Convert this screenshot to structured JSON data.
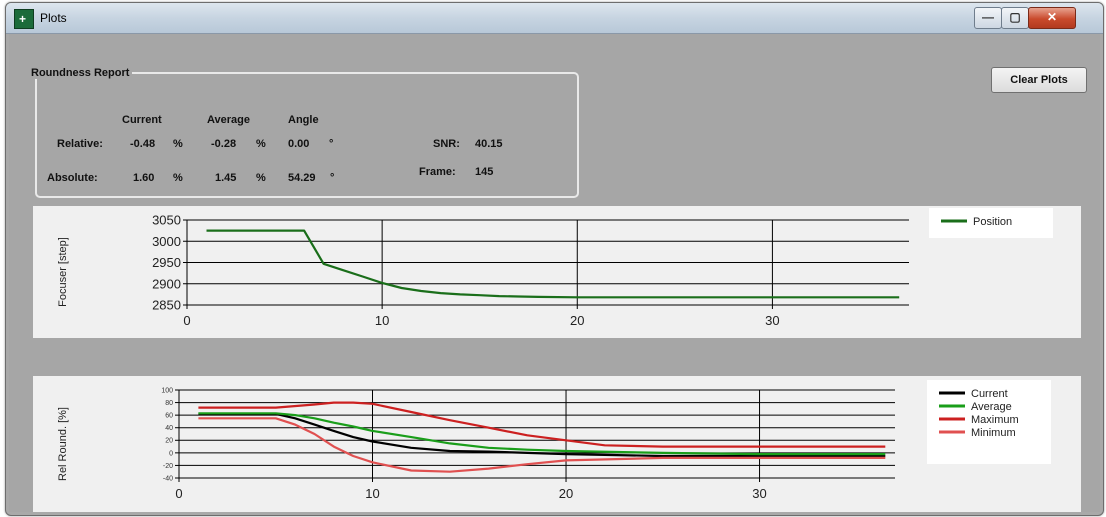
{
  "window": {
    "title": "Plots",
    "icon": "plots-app-icon"
  },
  "titlebar_buttons": {
    "minimize": "—",
    "maximize": "▢",
    "close": "✕"
  },
  "report": {
    "title": "Roundness Report",
    "headers": {
      "current": "Current",
      "average": "Average",
      "angle": "Angle"
    },
    "relative": {
      "label": "Relative:",
      "current": "-0.48",
      "current_unit": "%",
      "average": "-0.28",
      "average_unit": "%",
      "angle": "0.00",
      "angle_unit": "°"
    },
    "absolute": {
      "label": "Absolute:",
      "current": "1.60",
      "current_unit": "%",
      "average": "1.45",
      "average_unit": "%",
      "angle": "54.29",
      "angle_unit": "°"
    },
    "snr": {
      "label": "SNR:",
      "value": "40.15"
    },
    "frame": {
      "label": "Frame:",
      "value": "145"
    }
  },
  "clear_button": "Clear Plots",
  "chart_data": [
    {
      "type": "line",
      "ylabel": "Focuser [step]",
      "xlim": [
        0,
        37
      ],
      "ylim": [
        2850,
        3050
      ],
      "x_ticks": [
        0,
        10,
        20,
        30
      ],
      "y_ticks": [
        2850,
        2900,
        2950,
        3000,
        3050
      ],
      "grid": true,
      "legend_position": "top-right",
      "series": [
        {
          "name": "Position",
          "color": "#1a6e1a",
          "x": [
            1,
            2,
            3,
            4,
            5,
            6,
            7,
            8,
            9,
            10,
            11,
            12,
            13,
            14,
            15,
            16,
            17,
            18,
            20,
            22,
            25,
            30,
            33,
            36.5
          ],
          "y": [
            3025,
            3025,
            3025,
            3025,
            3025,
            3025,
            2947,
            2932,
            2917,
            2902,
            2890,
            2883,
            2878,
            2875,
            2873,
            2871,
            2870,
            2869,
            2868,
            2868,
            2868,
            2868,
            2868,
            2868
          ]
        }
      ]
    },
    {
      "type": "line",
      "ylabel": "Rel Round. [%]",
      "xlim": [
        0,
        37
      ],
      "ylim": [
        -40,
        100
      ],
      "x_ticks": [
        0,
        10,
        20,
        30
      ],
      "y_ticks": [
        -40,
        -20,
        0,
        20,
        40,
        60,
        80,
        100
      ],
      "grid": true,
      "legend_position": "top-right",
      "series": [
        {
          "name": "Current",
          "color": "#000000",
          "x": [
            1,
            3,
            5,
            6,
            7,
            8,
            9,
            10,
            12,
            14,
            16,
            18,
            20,
            25,
            30,
            36.5
          ],
          "y": [
            62,
            62,
            62,
            55,
            45,
            35,
            25,
            18,
            8,
            3,
            2,
            0,
            -2,
            -5,
            -5,
            -5
          ]
        },
        {
          "name": "Average",
          "color": "#1a9e1a",
          "x": [
            1,
            3,
            5,
            6,
            7,
            8,
            9,
            10,
            12,
            14,
            16,
            18,
            20,
            25,
            30,
            36.5
          ],
          "y": [
            63,
            63,
            63,
            60,
            55,
            48,
            42,
            35,
            25,
            15,
            8,
            5,
            3,
            0,
            -2,
            -2
          ]
        },
        {
          "name": "Maximum",
          "color": "#cc2020",
          "x": [
            1,
            3,
            5,
            7,
            8,
            9,
            10,
            12,
            14,
            16,
            18,
            20,
            22,
            25,
            30,
            36.5
          ],
          "y": [
            72,
            72,
            72,
            77,
            80,
            80,
            78,
            65,
            52,
            40,
            28,
            20,
            12,
            10,
            10,
            10
          ]
        },
        {
          "name": "Minimum",
          "color": "#e05050",
          "x": [
            1,
            3,
            5,
            6,
            7,
            8,
            9,
            10,
            12,
            14,
            16,
            18,
            20,
            25,
            30,
            36.5
          ],
          "y": [
            55,
            55,
            55,
            45,
            30,
            10,
            -5,
            -15,
            -28,
            -30,
            -25,
            -18,
            -12,
            -8,
            -8,
            -8
          ]
        }
      ]
    }
  ]
}
